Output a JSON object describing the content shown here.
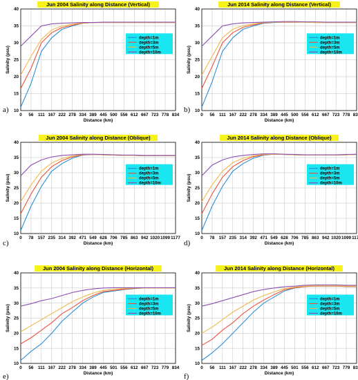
{
  "series_styles": [
    {
      "name": "depth=1m",
      "color": "#2b8fd6"
    },
    {
      "name": "depth=3m",
      "color": "#e8543a"
    },
    {
      "name": "depth=5m",
      "color": "#f0b84a"
    },
    {
      "name": "depth=10m",
      "color": "#8a4fb0"
    }
  ],
  "colors": {
    "title_bg": "#f7f21a",
    "legend_bg": "#19e6f0",
    "grid": "#bfbfbf"
  },
  "chart_data": [
    {
      "type": "line",
      "panel_label": "a)",
      "title": "Jun 2004 Salinity along Distance (Vertical)",
      "xlabel": "Distance (km)",
      "ylabel": "Salinity (psu)",
      "x_ticks": [
        "0",
        "56",
        "111",
        "167",
        "222",
        "278",
        "334",
        "389",
        "445",
        "500",
        "556",
        "612",
        "667",
        "723",
        "778",
        "834"
      ],
      "ylim": [
        10,
        40
      ],
      "y_ticks": [
        10,
        15,
        20,
        25,
        30,
        35,
        40
      ],
      "legend_position": "right",
      "series": [
        {
          "name": "depth=1m",
          "values": [
            11,
            18,
            27.5,
            31.5,
            34,
            35,
            35.8,
            36,
            36,
            36,
            36,
            36,
            36,
            36,
            36,
            36
          ]
        },
        {
          "name": "depth=3m",
          "values": [
            16.5,
            22.5,
            30,
            33,
            34.5,
            35.2,
            35.8,
            36,
            36,
            36,
            36,
            36,
            36,
            36,
            36,
            36
          ]
        },
        {
          "name": "depth=5m",
          "values": [
            20.5,
            26,
            31,
            33.8,
            35,
            35.5,
            35.9,
            36,
            36,
            36,
            36,
            36,
            36,
            36,
            36,
            36
          ]
        },
        {
          "name": "depth=10m",
          "values": [
            29,
            32,
            35,
            35.6,
            35.8,
            35.9,
            36,
            36,
            36.1,
            36.1,
            36.1,
            36.1,
            36.1,
            36.1,
            36.1,
            36.1
          ]
        }
      ]
    },
    {
      "type": "line",
      "panel_label": "b)",
      "title": "Jun 2014 Salinity along Distance (Vertical)",
      "xlabel": "Distance (km)",
      "ylabel": "Salinity (psu)",
      "x_ticks": [
        "0",
        "56",
        "111",
        "167",
        "222",
        "278",
        "334",
        "389",
        "445",
        "500",
        "556",
        "612",
        "667",
        "723",
        "778",
        "834"
      ],
      "ylim": [
        10,
        40
      ],
      "y_ticks": [
        10,
        15,
        20,
        25,
        30,
        35,
        40
      ],
      "legend_position": "right",
      "series": [
        {
          "name": "depth=1m",
          "values": [
            11,
            18.5,
            27.5,
            31.5,
            34,
            35,
            35.8,
            36,
            36.1,
            36.1,
            36.1,
            36,
            36,
            36,
            36,
            36
          ]
        },
        {
          "name": "depth=3m",
          "values": [
            16.5,
            23,
            30,
            33,
            34.6,
            35.3,
            35.9,
            36.1,
            36.1,
            36.1,
            36.1,
            36,
            36,
            36,
            36,
            36
          ]
        },
        {
          "name": "depth=5m",
          "values": [
            20.5,
            26,
            31.5,
            34,
            35.1,
            35.6,
            36,
            36.1,
            36.2,
            36.2,
            36.1,
            36,
            36,
            36,
            36,
            36
          ]
        },
        {
          "name": "depth=10m",
          "values": [
            29,
            32,
            35,
            35.6,
            35.9,
            36,
            36.1,
            36.2,
            36.3,
            36.3,
            36.2,
            36.2,
            36.1,
            36.1,
            36.1,
            36.1
          ]
        }
      ]
    },
    {
      "type": "line",
      "panel_label": "c)",
      "title": "Jun 2004 Salinity along Distance (Oblique)",
      "xlabel": "Distance (km)",
      "ylabel": "Salinity (psu)",
      "x_ticks": [
        "0",
        "78",
        "157",
        "235",
        "314",
        "392",
        "471",
        "549",
        "628",
        "706",
        "785",
        "863",
        "942",
        "1020",
        "1099",
        "1177"
      ],
      "ylim": [
        10,
        40
      ],
      "y_ticks": [
        10,
        15,
        20,
        25,
        30,
        35,
        40
      ],
      "legend_position": "right",
      "series": [
        {
          "name": "depth=1m",
          "values": [
            11,
            19,
            25.5,
            30.5,
            33,
            34.8,
            35.8,
            36,
            35.9,
            35.8,
            35.7,
            35.7,
            35.6,
            35.6,
            35.6,
            35.6
          ]
        },
        {
          "name": "depth=3m",
          "values": [
            16.5,
            23,
            28.5,
            32,
            34,
            35.2,
            35.9,
            36,
            35.9,
            35.8,
            35.7,
            35.7,
            35.6,
            35.6,
            35.6,
            35.6
          ]
        },
        {
          "name": "depth=5m",
          "values": [
            20.5,
            26,
            30.5,
            33.2,
            34.7,
            35.5,
            36,
            36,
            35.9,
            35.8,
            35.7,
            35.7,
            35.6,
            35.6,
            35.6,
            35.6
          ]
        },
        {
          "name": "depth=10m",
          "values": [
            29,
            32.5,
            34.2,
            35.2,
            35.7,
            35.9,
            36.1,
            36.1,
            36,
            35.9,
            35.8,
            35.8,
            35.7,
            35.7,
            35.7,
            35.7
          ]
        }
      ]
    },
    {
      "type": "line",
      "panel_label": "d)",
      "title": "Jun 2014 Salinity along Distance (Oblique)",
      "xlabel": "Distance (km)",
      "ylabel": "Salinity (psu)",
      "x_ticks": [
        "0",
        "78",
        "157",
        "235",
        "314",
        "392",
        "471",
        "549",
        "628",
        "706",
        "785",
        "863",
        "942",
        "1020",
        "1099",
        "1177"
      ],
      "ylim": [
        10,
        40
      ],
      "y_ticks": [
        10,
        15,
        20,
        25,
        30,
        35,
        40
      ],
      "legend_position": "right",
      "series": [
        {
          "name": "depth=1m",
          "values": [
            11,
            19,
            25.5,
            30.5,
            33,
            34.8,
            35.8,
            36.1,
            36,
            35.9,
            35.8,
            35.8,
            35.8,
            35.8,
            35.9,
            36
          ]
        },
        {
          "name": "depth=3m",
          "values": [
            16.5,
            23,
            28.5,
            32,
            34,
            35.3,
            35.9,
            36.1,
            36,
            35.9,
            35.8,
            35.8,
            35.8,
            35.8,
            35.9,
            36
          ]
        },
        {
          "name": "depth=5m",
          "values": [
            20.5,
            26,
            30.5,
            33.3,
            34.8,
            35.6,
            36,
            36.1,
            36,
            35.9,
            35.8,
            35.8,
            35.8,
            35.8,
            35.9,
            36
          ]
        },
        {
          "name": "depth=10m",
          "values": [
            29,
            32.5,
            34.2,
            35.2,
            35.7,
            36,
            36.2,
            36.2,
            36.1,
            36,
            35.9,
            35.9,
            35.9,
            35.9,
            36,
            36.1
          ]
        }
      ]
    },
    {
      "type": "line",
      "panel_label": "e)",
      "title": "Jun 2004 Salinity along Distance (Horizontal)",
      "xlabel": "Distance (km)",
      "ylabel": "Salinity (psu)",
      "x_ticks": [
        "0",
        "56",
        "111",
        "167",
        "222",
        "278",
        "334",
        "389",
        "445",
        "501",
        "556",
        "612",
        "667",
        "723",
        "779",
        "834"
      ],
      "ylim": [
        10,
        40
      ],
      "y_ticks": [
        10,
        15,
        20,
        25,
        30,
        35,
        40
      ],
      "legend_position": "right",
      "series": [
        {
          "name": "depth=1m",
          "values": [
            11,
            14,
            16.5,
            20,
            24,
            27,
            30,
            32,
            33.5,
            34,
            34.5,
            34.8,
            35,
            35,
            35,
            35
          ]
        },
        {
          "name": "depth=3m",
          "values": [
            16.5,
            18.5,
            21,
            23.5,
            26.5,
            28.5,
            30.8,
            32.5,
            33.8,
            34.2,
            34.6,
            34.9,
            35,
            35,
            35,
            35
          ]
        },
        {
          "name": "depth=5m",
          "values": [
            20.5,
            22.5,
            24.5,
            26.5,
            28.5,
            30.5,
            32,
            33.3,
            34.2,
            34.6,
            34.8,
            35,
            35,
            35,
            35,
            35
          ]
        },
        {
          "name": "depth=10m",
          "values": [
            29,
            29.8,
            30.8,
            31.5,
            32.5,
            33.5,
            34.2,
            34.7,
            35,
            35.1,
            35.1,
            35.1,
            35.1,
            35.1,
            35.1,
            35.1
          ]
        }
      ]
    },
    {
      "type": "line",
      "panel_label": "f)",
      "title": "Jun 2014 Salinity along Distance (Horizontal)",
      "xlabel": "Distance (km)",
      "ylabel": "Salinity (psu)",
      "x_ticks": [
        "0",
        "56",
        "111",
        "167",
        "222",
        "278",
        "334",
        "389",
        "445",
        "501",
        "556",
        "612",
        "667",
        "723",
        "779",
        "834"
      ],
      "ylim": [
        10,
        40
      ],
      "y_ticks": [
        10,
        15,
        20,
        25,
        30,
        35,
        40
      ],
      "legend_position": "right",
      "series": [
        {
          "name": "depth=1m",
          "values": [
            11,
            13.5,
            16.5,
            20,
            23.5,
            27,
            30,
            32,
            34,
            35,
            35.5,
            35.6,
            35.6,
            35.6,
            35.5,
            35.5
          ]
        },
        {
          "name": "depth=3m",
          "values": [
            16,
            18,
            21,
            23.5,
            26.5,
            29,
            31,
            32.8,
            34.4,
            35.1,
            35.5,
            35.6,
            35.6,
            35.6,
            35.5,
            35.5
          ]
        },
        {
          "name": "depth=5m",
          "values": [
            20,
            22,
            24.5,
            27,
            29,
            31,
            32.5,
            33.7,
            34.8,
            35.3,
            35.6,
            35.7,
            35.7,
            35.7,
            35.6,
            35.6
          ]
        },
        {
          "name": "depth=10m",
          "values": [
            29,
            29.8,
            30.8,
            31.8,
            32.8,
            33.8,
            34.5,
            35,
            35.4,
            35.6,
            35.9,
            36,
            36,
            36,
            35.9,
            35.9
          ]
        }
      ]
    }
  ]
}
